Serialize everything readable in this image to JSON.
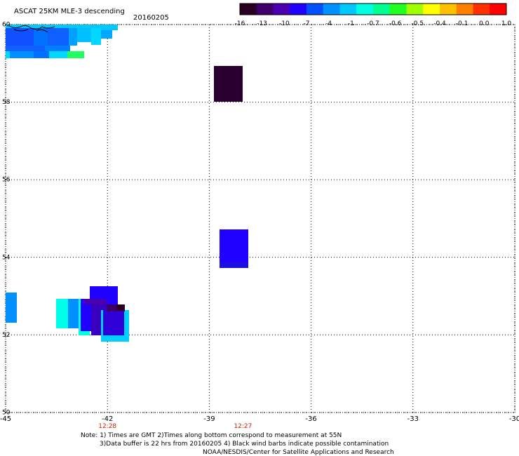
{
  "title": "ASCAT 25KM MLE-3 descending",
  "date": "20160205",
  "colorbar": {
    "colors": [
      "#2a0020",
      "#3d006a",
      "#4a00b0",
      "#2000ff",
      "#0050ff",
      "#0090ff",
      "#00c8ff",
      "#00ffe0",
      "#00ff90",
      "#20ff20",
      "#a0ff00",
      "#ffff00",
      "#ffc000",
      "#ff8000",
      "#ff3000",
      "#ff0000"
    ],
    "tick_labels": [
      "-16",
      "-13",
      "-10",
      "-7",
      "-4",
      "-1",
      "-0.7",
      "-0.6",
      "-0.5",
      "-0.4",
      "-0.1",
      "0.0",
      "1.0"
    ]
  },
  "map": {
    "x_range": [
      -45,
      -30
    ],
    "y_range": [
      50,
      60
    ],
    "x_ticks": [
      "-45",
      "-42",
      "-39",
      "-36",
      "-33",
      "-30"
    ],
    "y_ticks": [
      "50",
      "52",
      "54",
      "56",
      "58",
      "60"
    ],
    "time_labels": [
      "12:28",
      "12:27"
    ],
    "time_label_color": "#cc2200"
  },
  "notes": [
    "Note: 1) Times are GMT 2)Times along bottom correspond to measurement at 55N",
    "3)Data buffer is 22 hrs from 20160205 4) Black wind barbs indicate possible contamination",
    "NOAA/NESDIS/Center for Satellite Applications and Research"
  ]
}
